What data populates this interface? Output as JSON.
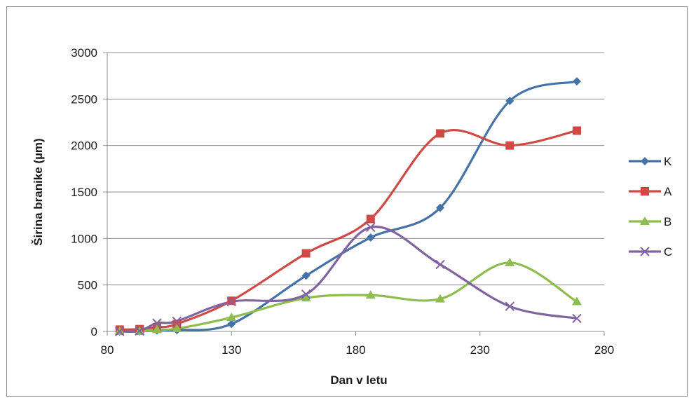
{
  "chart_data": {
    "type": "line",
    "xlabel": "Dan v letu",
    "ylabel": "Širina branike (µm)",
    "xlim": [
      80,
      280
    ],
    "ylim": [
      0,
      3000
    ],
    "xticks": [
      "80",
      "130",
      "180",
      "230",
      "280"
    ],
    "yticks": [
      "0",
      "500",
      "1000",
      "1500",
      "2000",
      "2500",
      "3000"
    ],
    "grid": "horizontal",
    "smooth": true,
    "legend_position": "right",
    "series": [
      {
        "name": "K",
        "color": "#4572a7",
        "marker": "diamond",
        "x": [
          85,
          93,
          100,
          108,
          130,
          160,
          186,
          214,
          242,
          269
        ],
        "y": [
          0,
          0,
          10,
          15,
          80,
          600,
          1010,
          1330,
          2480,
          2690
        ]
      },
      {
        "name": "A",
        "color": "#d04a45",
        "marker": "square",
        "x": [
          85,
          93,
          100,
          108,
          130,
          160,
          186,
          214,
          242,
          269
        ],
        "y": [
          20,
          25,
          45,
          80,
          330,
          840,
          1210,
          2130,
          2000,
          2160
        ]
      },
      {
        "name": "B",
        "color": "#8ebd4f",
        "marker": "triangle",
        "x": [
          85,
          93,
          100,
          108,
          130,
          160,
          186,
          214,
          242,
          269
        ],
        "y": [
          0,
          0,
          20,
          30,
          150,
          360,
          390,
          350,
          740,
          320
        ]
      },
      {
        "name": "C",
        "color": "#8064a2",
        "marker": "x",
        "x": [
          85,
          93,
          100,
          108,
          130,
          160,
          186,
          214,
          242,
          269
        ],
        "y": [
          0,
          5,
          90,
          110,
          320,
          400,
          1120,
          720,
          270,
          140
        ]
      }
    ]
  }
}
